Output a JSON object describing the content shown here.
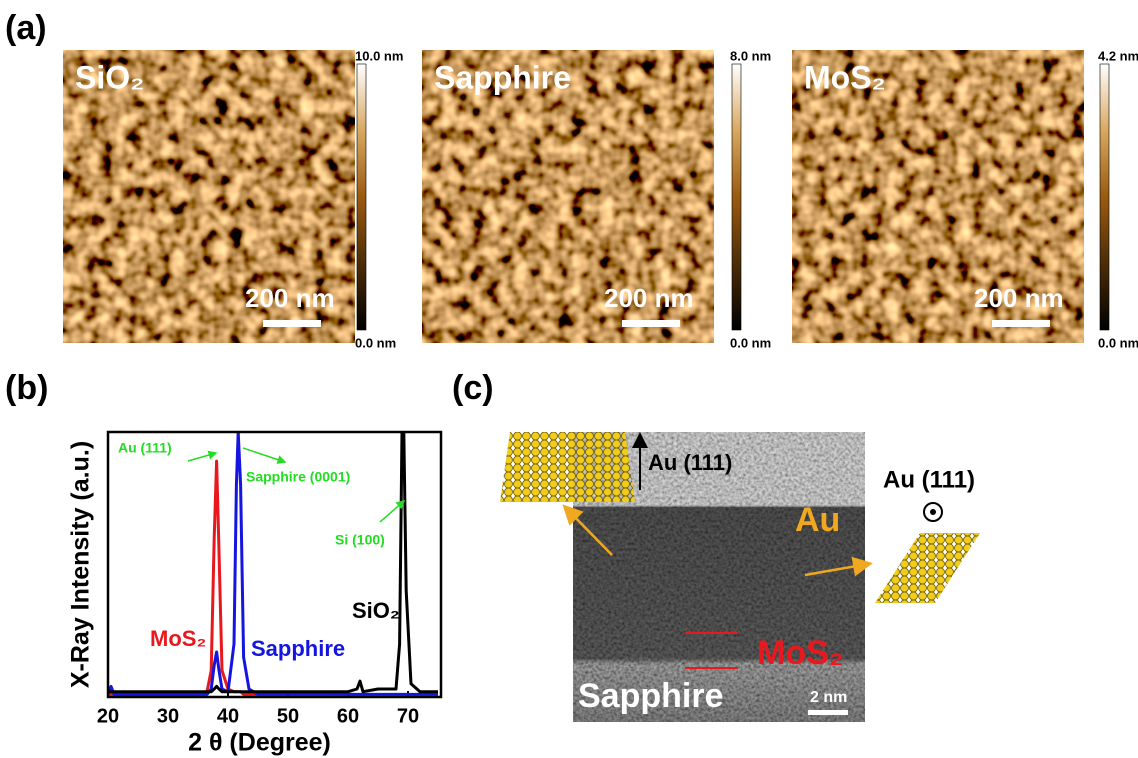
{
  "figure": {
    "a": {
      "label": "(a)",
      "images": [
        {
          "title": "SiO₂",
          "scale_top": "10.0 nm",
          "scale_bottom": "0.0 nm",
          "scale_bar": "200 nm"
        },
        {
          "title": "Sapphire",
          "scale_top": "8.0 nm",
          "scale_bottom": "0.0 nm",
          "scale_bar": "200 nm"
        },
        {
          "title": "MoS₂",
          "scale_top": "4.2 nm",
          "scale_bottom": "0.0 nm",
          "scale_bar": "200 nm"
        }
      ]
    },
    "b": {
      "label": "(b)"
    },
    "c": {
      "label": "(c)",
      "texts": {
        "au_direction": "Au (111)",
        "au": "Au",
        "mos2": "MoS₂",
        "sapphire": "Sapphire",
        "scale_bar": "2 nm",
        "zone_axis": "Au (111)"
      }
    }
  },
  "chart_data": {
    "type": "line",
    "xlabel": "2 θ (Degree)",
    "ylabel": "X-Ray Intensity (a.u.)",
    "x": [
      20,
      20.5,
      21,
      30,
      35,
      36.5,
      37.2,
      37.7,
      38.1,
      38.5,
      39,
      40,
      41,
      41.4,
      41.7,
      42.1,
      42.6,
      43.5,
      45,
      50,
      60,
      61.5,
      62,
      62.5,
      65,
      68,
      68.6,
      69,
      69.3,
      69.7,
      70.5,
      72,
      75
    ],
    "series": [
      {
        "name": "MoS₂",
        "color": "#e8191e",
        "values": [
          1,
          1,
          1,
          1,
          1,
          2,
          10,
          60,
          89,
          55,
          10,
          3,
          2,
          2,
          2,
          2,
          1,
          1,
          1,
          null,
          null,
          null,
          null,
          null,
          null,
          null,
          null,
          null,
          null,
          null,
          null,
          null,
          null
        ]
      },
      {
        "name": "Sapphire",
        "color": "#1515e0",
        "values": [
          1,
          4,
          1,
          1,
          1,
          1,
          3,
          12,
          17,
          10,
          3,
          2,
          20,
          80,
          100,
          80,
          15,
          3,
          1,
          1,
          1,
          1,
          1,
          1,
          1,
          1,
          1,
          1,
          1,
          1,
          1,
          1,
          1
        ]
      },
      {
        "name": "SiO₂",
        "color": "#000000",
        "values": [
          2,
          2,
          2,
          2,
          2,
          2,
          2,
          3,
          4,
          3,
          2,
          2,
          2,
          2,
          2,
          2,
          2,
          2,
          2,
          2,
          2,
          3,
          6,
          2,
          3,
          3,
          20,
          100,
          100,
          40,
          5,
          2,
          2
        ]
      }
    ],
    "xlim": [
      20,
      75.5
    ],
    "ylim": [
      0,
      100
    ],
    "xticks": [
      20,
      30,
      40,
      50,
      60,
      70
    ],
    "annotations": [
      "Au (111)",
      "Sapphire (0001)",
      "Si (100)"
    ],
    "annotation_color": "#22dd22"
  }
}
